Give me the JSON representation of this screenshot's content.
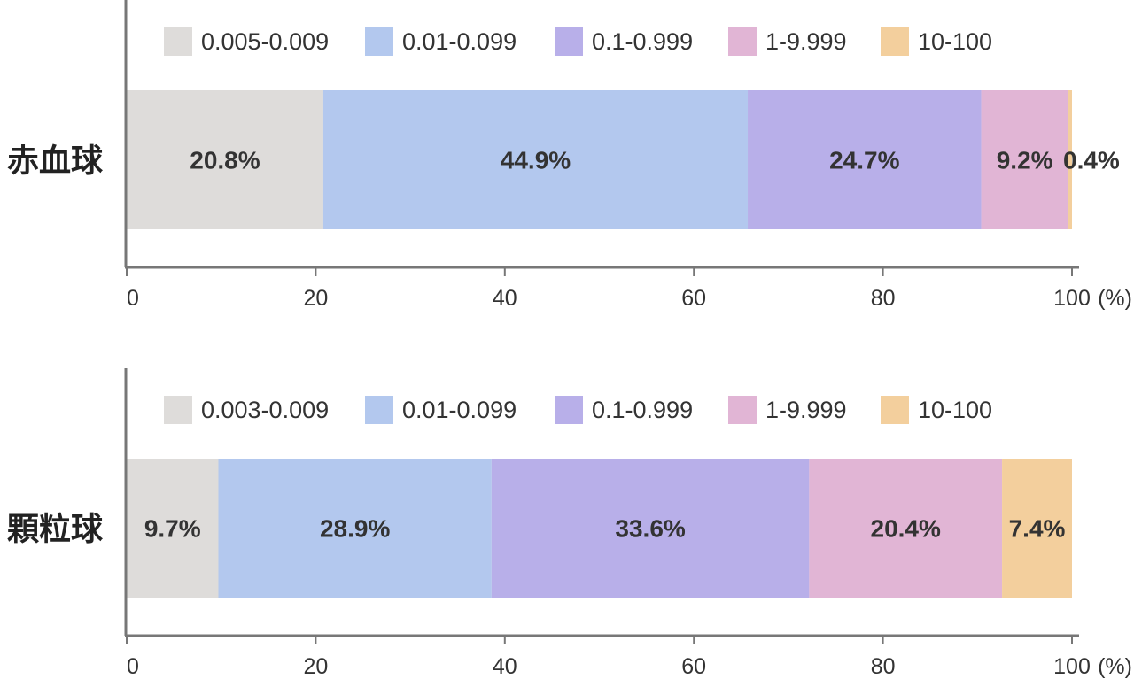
{
  "chart_data": [
    {
      "type": "bar",
      "orientation": "horizontal",
      "stacked": true,
      "category": "赤血球",
      "xlim": [
        0,
        100
      ],
      "x_ticks": [
        "0",
        "20",
        "40",
        "60",
        "80",
        "100"
      ],
      "x_unit": "(%)",
      "legend_placement": "top",
      "series": [
        {
          "name": "0.005-0.009",
          "value": 20.8,
          "label": "20.8%"
        },
        {
          "name": "0.01-0.099",
          "value": 44.9,
          "label": "44.9%"
        },
        {
          "name": "0.1-0.999",
          "value": 24.7,
          "label": "24.7%"
        },
        {
          "name": "1-9.999",
          "value": 9.2,
          "label": "9.2%"
        },
        {
          "name": "10-100",
          "value": 0.4,
          "label": "0.4%"
        }
      ]
    },
    {
      "type": "bar",
      "orientation": "horizontal",
      "stacked": true,
      "category": "顆粒球",
      "xlim": [
        0,
        100
      ],
      "x_ticks": [
        "0",
        "20",
        "40",
        "60",
        "80",
        "100"
      ],
      "x_unit": "(%)",
      "legend_placement": "top",
      "series": [
        {
          "name": "0.003-0.009",
          "value": 9.7,
          "label": "9.7%"
        },
        {
          "name": "0.01-0.099",
          "value": 28.9,
          "label": "28.9%"
        },
        {
          "name": "0.1-0.999",
          "value": 33.6,
          "label": "33.6%"
        },
        {
          "name": "1-9.999",
          "value": 20.4,
          "label": "20.4%"
        },
        {
          "name": "10-100",
          "value": 7.4,
          "label": "7.4%"
        }
      ]
    }
  ],
  "colors": {
    "segments": [
      "#dedcda",
      "#b3c8ee",
      "#b8afe9",
      "#e1b5d5",
      "#f3cf9d"
    ],
    "axis": "#777777",
    "text": "#333333"
  }
}
